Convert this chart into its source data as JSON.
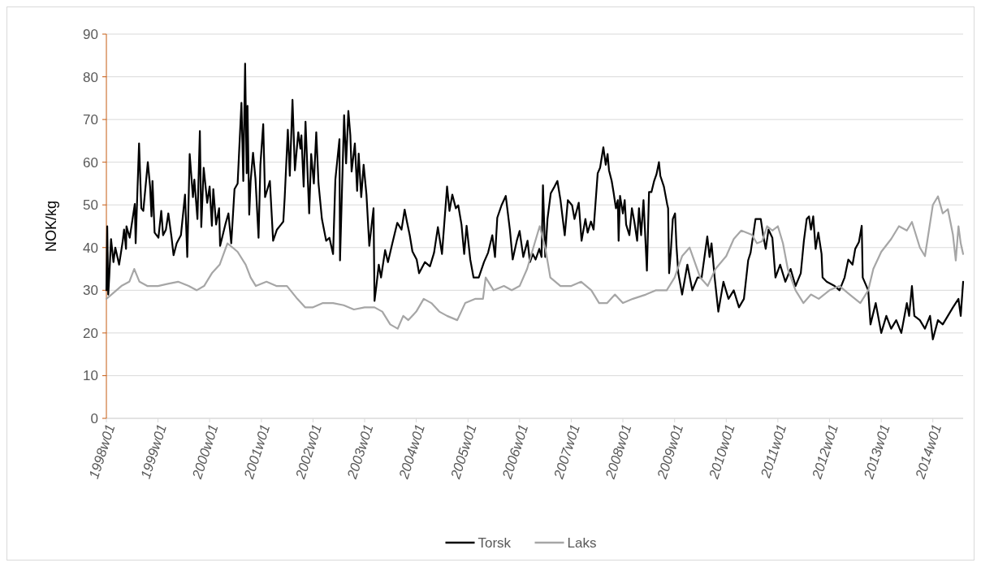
{
  "chart_data": {
    "type": "line",
    "ylabel": "NOK/kg",
    "xlim": [
      "1998-01-01",
      "2014-08-03"
    ],
    "ylim": [
      0,
      90
    ],
    "xticks": [
      {
        "value": "1998-01-01",
        "label": "1998w01"
      },
      {
        "value": "1999-01-01",
        "label": "1999w01"
      },
      {
        "value": "2000-01-01",
        "label": "2000w01"
      },
      {
        "value": "2001-01-01",
        "label": "2001w01"
      },
      {
        "value": "2002-01-01",
        "label": "2002w01"
      },
      {
        "value": "2003-01-01",
        "label": "2003w01"
      },
      {
        "value": "2004-01-01",
        "label": "2004w01"
      },
      {
        "value": "2005-01-01",
        "label": "2005w01"
      },
      {
        "value": "2006-01-01",
        "label": "2006w01"
      },
      {
        "value": "2007-01-01",
        "label": "2007w01"
      },
      {
        "value": "2008-01-01",
        "label": "2008w01"
      },
      {
        "value": "2009-01-01",
        "label": "2009w01"
      },
      {
        "value": "2010-01-01",
        "label": "2010w01"
      },
      {
        "value": "2011-01-01",
        "label": "2011w01"
      },
      {
        "value": "2012-01-01",
        "label": "2012w01"
      },
      {
        "value": "2013-01-01",
        "label": "2013w01"
      },
      {
        "value": "2014-01-01",
        "label": "2014w01"
      }
    ],
    "yticks": [
      0,
      10,
      20,
      30,
      40,
      50,
      60,
      70,
      80,
      90
    ],
    "grid": "y",
    "legend": "bottom",
    "line_style": "solid",
    "marker": "none",
    "series": [
      {
        "name": "Torsk",
        "color": "#000000",
        "x": [
          "1998-01-01",
          "1998-01-07",
          "1998-01-14",
          "1998-01-21",
          "1998-02-03",
          "1998-02-20",
          "1998-03-05",
          "1998-04-01",
          "1998-04-27",
          "1998-05-06",
          "1998-05-20",
          "1998-05-23",
          "1998-06-15",
          "1998-07-21",
          "1998-07-27",
          "1998-08-20",
          "1998-09-05",
          "1998-09-19",
          "1998-10-07",
          "1998-10-21",
          "1998-11-06",
          "1998-11-16",
          "1998-11-23",
          "1998-12-08",
          "1999-01-04",
          "1999-01-24",
          "1999-02-06",
          "1999-02-26",
          "1999-03-15",
          "1999-04-07",
          "1999-04-21",
          "1999-05-13",
          "1999-06-12",
          "1999-07-11",
          "1999-07-27",
          "1999-08-13",
          "1999-09-05",
          "1999-09-15",
          "1999-10-07",
          "1999-10-24",
          "1999-11-03",
          "1999-11-20",
          "1999-12-15",
          "2000-01-01",
          "2000-01-17",
          "2000-01-27",
          "2000-02-16",
          "2000-03-08",
          "2000-03-15",
          "2000-04-21",
          "2000-05-13",
          "2000-06-02",
          "2000-06-25",
          "2000-07-17",
          "2000-08-13",
          "2000-08-26",
          "2000-09-08",
          "2000-09-19",
          "2000-09-25",
          "2000-10-07",
          "2000-10-17",
          "2000-11-03",
          "2000-11-20",
          "2000-12-12",
          "2000-12-25",
          "2001-01-14",
          "2001-01-27",
          "2001-03-02",
          "2001-03-25",
          "2001-04-21",
          "2001-05-20",
          "2001-06-05",
          "2001-06-15",
          "2001-07-07",
          "2001-07-21",
          "2001-08-09",
          "2001-08-26",
          "2001-09-19",
          "2001-10-04",
          "2001-10-11",
          "2001-10-27",
          "2001-11-09",
          "2001-12-05",
          "2001-12-19",
          "2002-01-07",
          "2002-01-24",
          "2002-02-09",
          "2002-03-05",
          "2002-04-04",
          "2002-04-27",
          "2002-05-23",
          "2002-06-08",
          "2002-07-07",
          "2002-07-11",
          "2002-08-09",
          "2002-08-23",
          "2002-09-08",
          "2002-09-22",
          "2002-10-01",
          "2002-10-24",
          "2002-11-09",
          "2002-11-20",
          "2002-12-08",
          "2002-12-25",
          "2003-01-14",
          "2003-02-03",
          "2003-02-16",
          "2003-03-05",
          "2003-03-12",
          "2003-03-25",
          "2003-04-11",
          "2003-04-27",
          "2003-05-26",
          "2003-06-15",
          "2003-07-14",
          "2003-08-20",
          "2003-09-19",
          "2003-10-11",
          "2003-10-27",
          "2003-11-16",
          "2003-12-05",
          "2004-01-04",
          "2004-01-21",
          "2004-03-02",
          "2004-04-07",
          "2004-05-06",
          "2004-06-02",
          "2004-07-01",
          "2004-08-06",
          "2004-08-23",
          "2004-09-12",
          "2004-10-07",
          "2004-10-24",
          "2004-11-16",
          "2004-12-05",
          "2004-12-22",
          "2005-01-17",
          "2005-02-09",
          "2005-03-18",
          "2005-04-24",
          "2005-05-23",
          "2005-06-22",
          "2005-07-11",
          "2005-07-27",
          "2005-08-26",
          "2005-09-25",
          "2005-10-24",
          "2005-11-13",
          "2005-12-12",
          "2006-01-01",
          "2006-01-27",
          "2006-02-26",
          "2006-03-15",
          "2006-04-04",
          "2006-04-24",
          "2006-05-20",
          "2006-06-05",
          "2006-06-15",
          "2006-07-01",
          "2006-07-17",
          "2006-08-09",
          "2006-09-05",
          "2006-09-25",
          "2006-10-17",
          "2006-11-16",
          "2006-12-08",
          "2007-01-07",
          "2007-01-24",
          "2007-02-23",
          "2007-03-15",
          "2007-04-11",
          "2007-04-27",
          "2007-05-20",
          "2007-06-08",
          "2007-07-07",
          "2007-07-24",
          "2007-08-16",
          "2007-09-02",
          "2007-09-15",
          "2007-09-25",
          "2007-10-14",
          "2007-10-27",
          "2007-11-13",
          "2007-11-26",
          "2007-12-02",
          "2007-12-12",
          "2008-01-01",
          "2008-01-14",
          "2008-01-24",
          "2008-02-16",
          "2008-03-05",
          "2008-03-22",
          "2008-04-11",
          "2008-04-24",
          "2008-05-09",
          "2008-05-26",
          "2008-06-19",
          "2008-07-04",
          "2008-07-21",
          "2008-08-09",
          "2008-08-26",
          "2008-09-12",
          "2008-09-22",
          "2008-10-17",
          "2008-11-09",
          "2008-11-16",
          "2008-11-23",
          "2008-12-05",
          "2008-12-19",
          "2009-01-04",
          "2009-01-14",
          "2009-01-27",
          "2009-02-23",
          "2009-04-01",
          "2009-05-06",
          "2009-06-12",
          "2009-07-11",
          "2009-08-20",
          "2009-09-05",
          "2009-09-19",
          "2009-10-11",
          "2009-11-06",
          "2009-12-12",
          "2010-01-17",
          "2010-02-23",
          "2010-04-01",
          "2010-05-06",
          "2010-06-05",
          "2010-06-22",
          "2010-07-27",
          "2010-09-02",
          "2010-09-19",
          "2010-10-07",
          "2010-10-27",
          "2010-11-23",
          "2010-12-15",
          "2011-01-17",
          "2011-02-23",
          "2011-04-01",
          "2011-05-06",
          "2011-06-12",
          "2011-07-04",
          "2011-07-24",
          "2011-08-09",
          "2011-08-23",
          "2011-09-08",
          "2011-09-25",
          "2011-10-14",
          "2011-11-06",
          "2011-11-13",
          "2011-12-12",
          "2012-02-06",
          "2012-03-12",
          "2012-04-17",
          "2012-05-13",
          "2012-06-12",
          "2012-07-01",
          "2012-07-27",
          "2012-08-16",
          "2012-08-23",
          "2012-10-01",
          "2012-10-17",
          "2012-11-23",
          "2013-01-01",
          "2013-02-06",
          "2013-03-12",
          "2013-04-17",
          "2013-05-23",
          "2013-07-01",
          "2013-07-17",
          "2013-08-06",
          "2013-08-23",
          "2013-10-01",
          "2013-11-06",
          "2013-12-12",
          "2014-01-01",
          "2014-02-06",
          "2014-03-12",
          "2014-04-17",
          "2014-05-23",
          "2014-07-01",
          "2014-07-17",
          "2014-08-03"
        ],
        "values": [
          30,
          45,
          29,
          33,
          42,
          36.6,
          40,
          36,
          41.6,
          44.2,
          39.7,
          45,
          42.3,
          50.2,
          41,
          64.4,
          49.2,
          48.6,
          55,
          60,
          54.3,
          47.3,
          55.6,
          43.5,
          42.3,
          48.6,
          42.9,
          44.2,
          48,
          42.3,
          38.2,
          41,
          42.9,
          52.4,
          37.8,
          61.9,
          51.8,
          55.9,
          46.7,
          67.3,
          44.8,
          58.7,
          50.5,
          54.3,
          45.1,
          53.7,
          45.4,
          49.2,
          40.4,
          45.4,
          48,
          41,
          53.7,
          55,
          73.9,
          55.6,
          83.1,
          57.4,
          73.2,
          47.7,
          55.6,
          62.2,
          56.2,
          42.3,
          59.4,
          68.9,
          51.8,
          55.6,
          41.6,
          44.2,
          45.4,
          46.1,
          51.8,
          67.6,
          56.8,
          74.6,
          58.1,
          67,
          63.2,
          66.3,
          54.3,
          69.5,
          48,
          61.9,
          55,
          67,
          55,
          46.7,
          41.6,
          42.3,
          38.5,
          55.9,
          65.4,
          37,
          71,
          59.7,
          72,
          66.3,
          57.8,
          64.4,
          53.3,
          62,
          51.8,
          59.4,
          52.4,
          40.4,
          44.2,
          49.2,
          27.5,
          31,
          36,
          33,
          39.4,
          36.6,
          40.7,
          45.8,
          44.2,
          48.9,
          46.1,
          42.9,
          39.1,
          37.2,
          34,
          36.6,
          35.6,
          38.8,
          44.8,
          38.5,
          54.3,
          48.6,
          52.4,
          49.2,
          49.9,
          45.4,
          38.5,
          45.1,
          37.2,
          33,
          33,
          36.6,
          38.8,
          42.9,
          37.8,
          47,
          49.9,
          52.1,
          44.2,
          37.2,
          41.6,
          43.9,
          37.8,
          41.6,
          36.6,
          38.5,
          37.2,
          39.7,
          37.8,
          54.6,
          37.8,
          46.7,
          52.7,
          54.3,
          55.6,
          51.1,
          42.9,
          51.1,
          49.9,
          46.7,
          50.5,
          41.6,
          46.7,
          43.5,
          46.1,
          44.2,
          57.4,
          58.7,
          63.5,
          59.4,
          61.9,
          58.1,
          55.6,
          53,
          49.2,
          51.1,
          41.6,
          52.1,
          48,
          51.1,
          45.4,
          42.9,
          49.2,
          46.1,
          41.6,
          49.2,
          42.9,
          51.1,
          34.6,
          53,
          53,
          55.6,
          57.2,
          60,
          56.8,
          54.3,
          50.2,
          49.2,
          34,
          39,
          46.7,
          48,
          40.4,
          34,
          29,
          36,
          30,
          33,
          33,
          42.6,
          37.8,
          41,
          33,
          25,
          32,
          28,
          30,
          26,
          28,
          37,
          38.8,
          46.7,
          46.7,
          42.9,
          39.7,
          44.2,
          42.3,
          33,
          36,
          32,
          35,
          31,
          34,
          41.6,
          46.7,
          47.3,
          44.2,
          47.3,
          39.7,
          43.5,
          38.5,
          33,
          32,
          31,
          30,
          33,
          37.2,
          36,
          39.7,
          41.3,
          45.1,
          33,
          30,
          22,
          27,
          20,
          24,
          21,
          23,
          20,
          27,
          24,
          31,
          24,
          23,
          21,
          24,
          18.5,
          23,
          22,
          24,
          26,
          28,
          24,
          32
        ]
      },
      {
        "name": "Laks",
        "color": "#a6a6a6",
        "x": [
          "1998-01-01",
          "1998-02-06",
          "1998-04-17",
          "1998-06-12",
          "1998-07-17",
          "1998-08-23",
          "1998-10-17",
          "1999-01-01",
          "1999-03-12",
          "1999-05-23",
          "1999-08-06",
          "1999-10-01",
          "1999-11-23",
          "2000-01-17",
          "2000-03-12",
          "2000-05-06",
          "2000-06-12",
          "2000-07-17",
          "2000-09-12",
          "2000-10-17",
          "2000-11-23",
          "2001-02-06",
          "2001-04-17",
          "2001-07-01",
          "2001-09-12",
          "2001-11-06",
          "2002-01-01",
          "2002-03-12",
          "2002-05-23",
          "2002-08-06",
          "2002-10-17",
          "2003-01-01",
          "2003-03-12",
          "2003-05-06",
          "2003-07-01",
          "2003-08-23",
          "2003-10-01",
          "2003-11-06",
          "2004-01-01",
          "2004-02-23",
          "2004-04-17",
          "2004-06-12",
          "2004-08-06",
          "2004-10-17",
          "2004-12-12",
          "2005-02-23",
          "2005-04-17",
          "2005-05-06",
          "2005-07-01",
          "2005-09-12",
          "2005-11-06",
          "2006-01-01",
          "2006-02-23",
          "2006-04-17",
          "2006-05-23",
          "2006-07-01",
          "2006-08-06",
          "2006-10-17",
          "2007-01-01",
          "2007-03-12",
          "2007-05-23",
          "2007-07-17",
          "2007-09-12",
          "2007-11-06",
          "2008-01-01",
          "2008-03-12",
          "2008-06-12",
          "2008-08-23",
          "2008-11-06",
          "2009-01-01",
          "2009-02-23",
          "2009-04-17",
          "2009-07-01",
          "2009-08-23",
          "2009-10-17",
          "2010-01-01",
          "2010-02-23",
          "2010-04-17",
          "2010-07-01",
          "2010-08-06",
          "2010-09-12",
          "2010-10-17",
          "2010-11-23",
          "2011-01-01",
          "2011-02-06",
          "2011-03-12",
          "2011-05-06",
          "2011-07-01",
          "2011-08-23",
          "2011-10-17",
          "2012-01-01",
          "2012-03-12",
          "2012-05-23",
          "2012-08-06",
          "2012-10-01",
          "2012-11-06",
          "2013-01-01",
          "2013-03-12",
          "2013-05-06",
          "2013-07-01",
          "2013-08-06",
          "2013-10-01",
          "2013-11-06",
          "2014-01-01",
          "2014-02-06",
          "2014-03-12",
          "2014-04-17",
          "2014-05-23",
          "2014-06-12",
          "2014-07-01",
          "2014-07-17",
          "2014-08-03"
        ],
        "values": [
          28,
          29,
          31,
          32,
          35,
          32,
          31,
          31,
          31.5,
          32,
          31,
          30,
          31,
          34,
          36,
          41,
          40,
          39,
          36,
          33,
          31,
          32,
          31,
          31,
          28,
          26,
          26,
          27,
          27,
          26.5,
          25.5,
          26,
          26,
          25,
          22,
          21,
          24,
          23,
          25,
          28,
          27,
          25,
          24,
          23,
          27,
          28,
          28,
          33,
          30,
          31,
          30,
          31,
          35,
          41,
          45,
          40,
          33,
          31,
          31,
          32,
          30,
          27,
          27,
          29,
          27,
          28,
          29,
          30,
          30,
          33,
          38,
          40,
          33,
          31,
          35,
          38,
          42,
          44,
          43,
          41,
          41.5,
          45,
          44,
          45,
          41,
          35,
          30,
          27,
          29,
          28,
          30,
          31,
          29,
          27,
          30,
          35,
          39,
          42,
          45,
          44,
          46,
          40,
          38,
          50,
          52,
          48,
          49,
          43,
          37,
          45,
          41,
          38.5
        ]
      }
    ]
  }
}
